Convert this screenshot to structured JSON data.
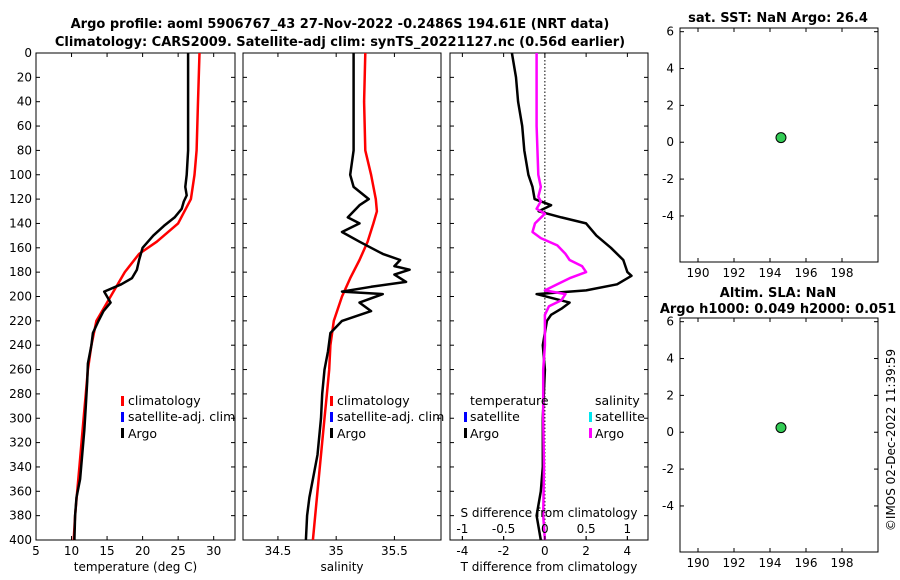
{
  "header": {
    "title_line1": "Argo profile: aoml 5906767_43 27-Nov-2022 -0.2486S 194.61E (NRT data)",
    "title_line2": "Climatology: CARS2009. Satellite-adj clim: synTS_20221127.nc (0.56d earlier)",
    "sst_title": "sat. SST: NaN Argo: 26.4",
    "sla_title_1": "Altim. SLA: NaN",
    "sla_title_2": "Argo h1000: 0.049 h2000: 0.051",
    "watermark": "©IMOS 02-Dec-2022 11:39:59"
  },
  "colors": {
    "climatology": "#ff0000",
    "satellite": "#0000ff",
    "satellite_s": "#00e5ee",
    "argo": "#000000",
    "argo_s": "#ff00ff",
    "dot": "#33cc55"
  },
  "legends": {
    "climatology": "climatology",
    "satellite_adj": "satellite-adj. clim",
    "argo": "Argo",
    "diff_temperature": "temperature",
    "diff_salinity": "salinity",
    "satellite": "satellite"
  },
  "chart_data": [
    {
      "type": "line",
      "name": "temperature",
      "xlabel": "temperature (deg C)",
      "ylabel": "",
      "xlim": [
        5,
        33
      ],
      "ylim": [
        400,
        0
      ],
      "xticks": [
        5,
        10,
        15,
        20,
        25,
        30
      ],
      "yticks": [
        0,
        20,
        40,
        60,
        80,
        100,
        120,
        140,
        160,
        180,
        200,
        220,
        240,
        260,
        280,
        300,
        320,
        340,
        360,
        380,
        400
      ],
      "series": [
        {
          "name": "climatology",
          "color": "#ff0000",
          "points": [
            [
              28.0,
              0
            ],
            [
              27.8,
              40
            ],
            [
              27.6,
              80
            ],
            [
              27.3,
              100
            ],
            [
              26.8,
              120
            ],
            [
              25.0,
              140
            ],
            [
              22.0,
              155
            ],
            [
              19.5,
              165
            ],
            [
              17.5,
              180
            ],
            [
              15.5,
              200
            ],
            [
              13.5,
              220
            ],
            [
              12.8,
              240
            ],
            [
              12.3,
              260
            ],
            [
              12.0,
              280
            ],
            [
              11.7,
              300
            ],
            [
              11.4,
              320
            ],
            [
              11.1,
              340
            ],
            [
              10.8,
              360
            ],
            [
              10.5,
              380
            ],
            [
              10.3,
              400
            ]
          ]
        },
        {
          "name": "Argo",
          "color": "#000000",
          "points": [
            [
              26.4,
              0
            ],
            [
              26.4,
              40
            ],
            [
              26.4,
              80
            ],
            [
              26.2,
              100
            ],
            [
              26.0,
              110
            ],
            [
              26.2,
              117
            ],
            [
              25.8,
              122
            ],
            [
              25.5,
              128
            ],
            [
              24.5,
              135
            ],
            [
              23.0,
              142
            ],
            [
              21.5,
              150
            ],
            [
              20.0,
              160
            ],
            [
              19.5,
              170
            ],
            [
              19.2,
              178
            ],
            [
              18.5,
              185
            ],
            [
              17.0,
              190
            ],
            [
              14.6,
              196
            ],
            [
              15.5,
              205
            ],
            [
              14.5,
              212
            ],
            [
              13.8,
              220
            ],
            [
              13.0,
              230
            ],
            [
              12.8,
              240
            ],
            [
              12.3,
              255
            ],
            [
              12.2,
              270
            ],
            [
              12.0,
              290
            ],
            [
              11.8,
              310
            ],
            [
              11.5,
              330
            ],
            [
              11.2,
              350
            ],
            [
              10.7,
              365
            ],
            [
              10.5,
              380
            ],
            [
              10.4,
              400
            ]
          ]
        }
      ]
    },
    {
      "type": "line",
      "name": "salinity",
      "xlabel": "salinity",
      "ylabel": "",
      "xlim": [
        34.2,
        35.9
      ],
      "xticks": [
        34.5,
        35,
        35.5
      ],
      "xticklabels": [
        "34.5",
        "35",
        "35.5"
      ],
      "series": [
        {
          "name": "climatology",
          "color": "#ff0000",
          "points": [
            [
              35.25,
              0
            ],
            [
              35.24,
              40
            ],
            [
              35.25,
              80
            ],
            [
              35.3,
              100
            ],
            [
              35.34,
              120
            ],
            [
              35.35,
              130
            ],
            [
              35.32,
              140
            ],
            [
              35.27,
              155
            ],
            [
              35.2,
              170
            ],
            [
              35.12,
              185
            ],
            [
              35.05,
              200
            ],
            [
              34.98,
              220
            ],
            [
              34.95,
              240
            ],
            [
              34.94,
              260
            ],
            [
              34.92,
              280
            ],
            [
              34.9,
              300
            ],
            [
              34.87,
              330
            ],
            [
              34.84,
              360
            ],
            [
              34.82,
              380
            ],
            [
              34.8,
              400
            ]
          ]
        },
        {
          "name": "Argo",
          "color": "#000000",
          "points": [
            [
              35.15,
              0
            ],
            [
              35.15,
              40
            ],
            [
              35.15,
              80
            ],
            [
              35.12,
              100
            ],
            [
              35.15,
              110
            ],
            [
              35.28,
              120
            ],
            [
              35.2,
              125
            ],
            [
              35.1,
              135
            ],
            [
              35.2,
              140
            ],
            [
              35.05,
              147
            ],
            [
              35.2,
              155
            ],
            [
              35.3,
              160
            ],
            [
              35.4,
              165
            ],
            [
              35.55,
              170
            ],
            [
              35.5,
              175
            ],
            [
              35.63,
              178
            ],
            [
              35.5,
              182
            ],
            [
              35.6,
              188
            ],
            [
              35.3,
              192
            ],
            [
              35.05,
              196
            ],
            [
              35.4,
              198
            ],
            [
              35.2,
              205
            ],
            [
              35.3,
              212
            ],
            [
              35.05,
              220
            ],
            [
              34.95,
              230
            ],
            [
              34.93,
              245
            ],
            [
              34.9,
              260
            ],
            [
              34.88,
              280
            ],
            [
              34.87,
              300
            ],
            [
              34.84,
              330
            ],
            [
              34.8,
              350
            ],
            [
              34.77,
              365
            ],
            [
              34.75,
              380
            ],
            [
              34.74,
              400
            ]
          ]
        }
      ]
    },
    {
      "type": "line",
      "name": "difference",
      "xlabel": "T difference from climatology",
      "top_xlabel": "S difference from climatology",
      "xlim": [
        -4.6,
        5
      ],
      "xticks": [
        -4,
        -2,
        0,
        2,
        4
      ],
      "top_xlim": [
        -1.15,
        1.25
      ],
      "top_xticks": [
        -1,
        -0.5,
        0,
        0.5,
        1
      ],
      "top_xticklabels": [
        "-1",
        "-0.5",
        "0",
        "0.5",
        "1"
      ],
      "series": [
        {
          "name": "T diff Argo",
          "color": "#000000",
          "points": [
            [
              -1.6,
              0
            ],
            [
              -1.4,
              20
            ],
            [
              -1.3,
              40
            ],
            [
              -1.1,
              60
            ],
            [
              -1.0,
              80
            ],
            [
              -0.8,
              100
            ],
            [
              -0.6,
              110
            ],
            [
              -0.5,
              120
            ],
            [
              0.3,
              125
            ],
            [
              -0.3,
              130
            ],
            [
              0.8,
              135
            ],
            [
              2.0,
              140
            ],
            [
              2.5,
              150
            ],
            [
              3.2,
              160
            ],
            [
              3.8,
              170
            ],
            [
              4.0,
              180
            ],
            [
              4.2,
              183
            ],
            [
              3.5,
              190
            ],
            [
              2.0,
              195
            ],
            [
              -0.4,
              198
            ],
            [
              1.2,
              205
            ],
            [
              0.8,
              210
            ],
            [
              0.3,
              215
            ],
            [
              0.1,
              220
            ],
            [
              -0.1,
              240
            ],
            [
              0.0,
              260
            ],
            [
              -0.1,
              300
            ],
            [
              -0.1,
              340
            ],
            [
              -0.2,
              360
            ],
            [
              -0.4,
              380
            ],
            [
              -0.2,
              400
            ]
          ]
        },
        {
          "name": "S diff Argo",
          "color": "#ff00ff",
          "points": [
            [
              -0.1,
              0
            ],
            [
              -0.1,
              60
            ],
            [
              -0.08,
              100
            ],
            [
              -0.05,
              110
            ],
            [
              -0.08,
              118
            ],
            [
              -0.05,
              122
            ],
            [
              -0.1,
              128
            ],
            [
              0.0,
              132
            ],
            [
              -0.12,
              140
            ],
            [
              -0.15,
              147
            ],
            [
              -0.05,
              152
            ],
            [
              0.15,
              158
            ],
            [
              0.25,
              165
            ],
            [
              0.3,
              170
            ],
            [
              0.45,
              175
            ],
            [
              0.5,
              180
            ],
            [
              0.3,
              185
            ],
            [
              0.15,
              190
            ],
            [
              0.0,
              195
            ],
            [
              0.25,
              198
            ],
            [
              0.2,
              203
            ],
            [
              0.05,
              208
            ],
            [
              0.0,
              215
            ],
            [
              0.0,
              240
            ],
            [
              -0.02,
              260
            ],
            [
              -0.02,
              300
            ],
            [
              -0.01,
              340
            ],
            [
              -0.02,
              380
            ],
            [
              0.0,
              400
            ]
          ]
        }
      ]
    },
    {
      "type": "scatter",
      "name": "sst",
      "title": "sat. SST: NaN Argo: 26.4",
      "xlim": [
        189,
        200
      ],
      "ylim": [
        -6.5,
        6.2
      ],
      "xticks": [
        190,
        192,
        194,
        196,
        198
      ],
      "yticks": [
        6,
        4,
        2,
        0,
        -2,
        -4
      ],
      "points": [
        [
          194.61,
          0.25
        ]
      ]
    },
    {
      "type": "scatter",
      "name": "sla",
      "title": "Altim. SLA: NaN Argo h1000: 0.049 h2000: 0.051",
      "xlim": [
        189,
        200
      ],
      "ylim": [
        -6.5,
        6.2
      ],
      "xticks": [
        190,
        192,
        194,
        196,
        198
      ],
      "yticks": [
        6,
        4,
        2,
        0,
        -2,
        -4
      ],
      "points": [
        [
          194.61,
          0.25
        ]
      ]
    }
  ]
}
